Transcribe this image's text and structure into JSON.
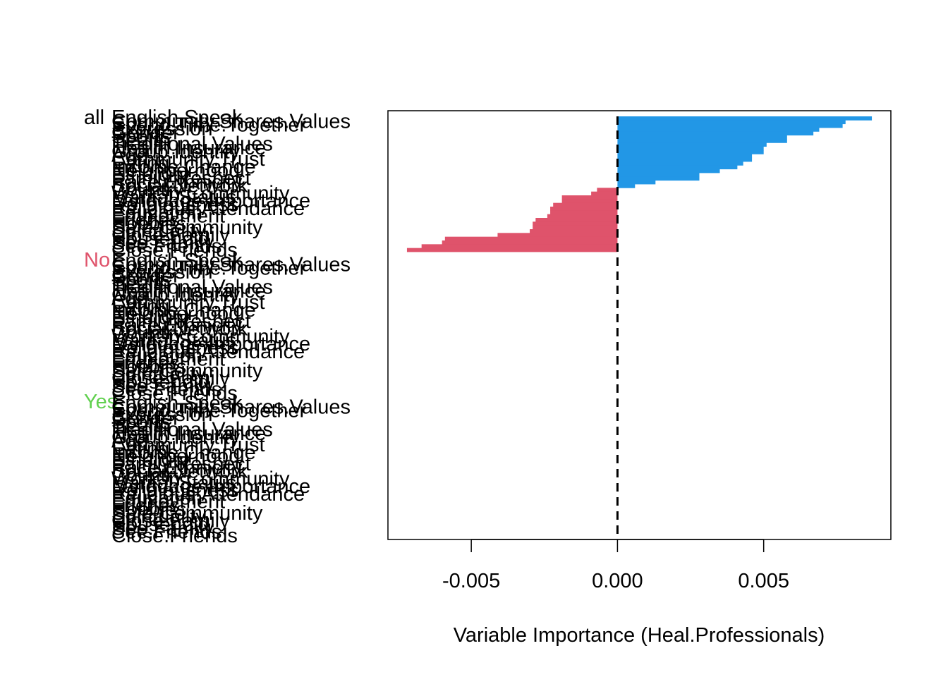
{
  "chart_data": {
    "type": "bar",
    "orientation": "horizontal",
    "xlabel": "Variable Importance (Heal.Professionals)",
    "ylabel": "",
    "xlim": [
      -0.00785,
      0.00935
    ],
    "xticks": [
      -0.005,
      0.0,
      0.005
    ],
    "xtick_labels": [
      "-0.005",
      "0.000",
      "0.005"
    ],
    "reference_line": 0.0,
    "grid": false,
    "colors": {
      "positive": "#2297E6",
      "negative": "#DF536B",
      "all": "#000000",
      "no": "#DF536B",
      "yes": "#61D04F",
      "axis": "#000000"
    },
    "groups": [
      {
        "name": "all",
        "color": "#000000"
      },
      {
        "name": "No",
        "color": "#DF536B"
      },
      {
        "name": "Yes",
        "color": "#61D04F"
      }
    ],
    "categories": [
      "English.Speak",
      "Community.Shares.Values",
      "Spend.Time.Together",
      "Expression",
      "Gender",
      "Sports",
      "Health",
      "Traditional.Values",
      "Health.Insurance",
      "Group.Identity",
      "Age",
      "Community.Trust",
      "Eating",
      "Income.Change",
      "Neighborhood",
      "Ethnicity",
      "Family.Respect",
      "Race.Ethnicity",
      "Social.Network",
      "Country",
      "Work.in.Community",
      "Marital.Status",
      "Language.Importance",
      "Religiousness",
      "Religious.Attendance",
      "Education",
      "Employment",
      "Friends",
      "Hobbies",
      "Safe.Community",
      "Spirituality",
      "Close.Family",
      "Household",
      "See.Family",
      "See.Friends",
      "Close.Friends"
    ],
    "values": [
      0.0087,
      0.0078,
      0.0077,
      0.0069,
      0.0067,
      0.0058,
      0.0058,
      0.0051,
      0.005,
      0.005,
      0.0046,
      0.0046,
      0.0043,
      0.0041,
      0.0035,
      0.0028,
      0.0028,
      0.0013,
      0.0006,
      -0.0007,
      -0.0009,
      -0.0019,
      -0.0019,
      -0.0022,
      -0.0023,
      -0.0023,
      -0.0024,
      -0.0028,
      -0.0029,
      -0.0029,
      -0.003,
      -0.0041,
      -0.0059,
      -0.006,
      -0.0067,
      -0.0072
    ]
  }
}
